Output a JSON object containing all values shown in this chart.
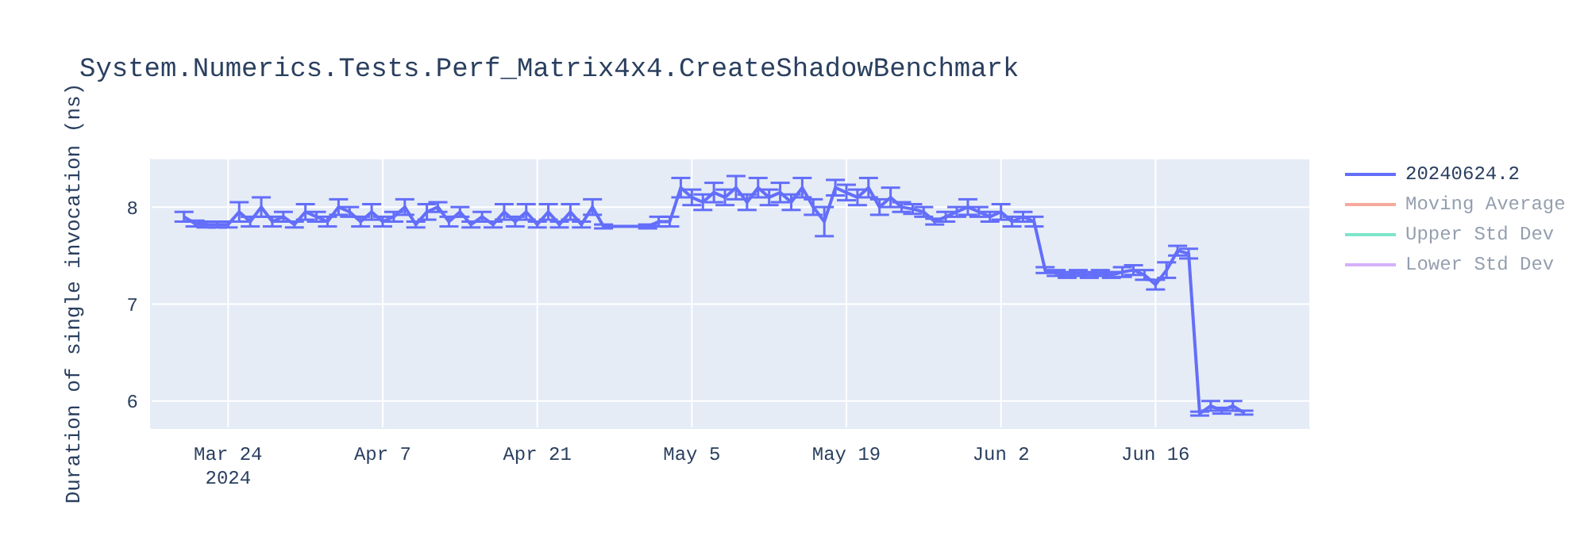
{
  "chart_data": {
    "type": "line",
    "title": "System.Numerics.Tests.Perf_Matrix4x4.CreateShadowBenchmark",
    "ylabel": "Duration of single invocation (ns)",
    "x": [
      "2024-03-20",
      "2024-03-21",
      "2024-03-22",
      "2024-03-23",
      "2024-03-24",
      "2024-03-25",
      "2024-03-26",
      "2024-03-27",
      "2024-03-28",
      "2024-03-29",
      "2024-03-30",
      "2024-03-31",
      "2024-04-01",
      "2024-04-02",
      "2024-04-03",
      "2024-04-04",
      "2024-04-05",
      "2024-04-06",
      "2024-04-07",
      "2024-04-08",
      "2024-04-09",
      "2024-04-10",
      "2024-04-11",
      "2024-04-12",
      "2024-04-13",
      "2024-04-14",
      "2024-04-15",
      "2024-04-16",
      "2024-04-17",
      "2024-04-18",
      "2024-04-19",
      "2024-04-20",
      "2024-04-21",
      "2024-04-22",
      "2024-04-23",
      "2024-04-24",
      "2024-04-25",
      "2024-04-26",
      "2024-04-27",
      "2024-05-01",
      "2024-05-02",
      "2024-05-03",
      "2024-05-04",
      "2024-05-05",
      "2024-05-06",
      "2024-05-07",
      "2024-05-08",
      "2024-05-09",
      "2024-05-10",
      "2024-05-11",
      "2024-05-12",
      "2024-05-13",
      "2024-05-14",
      "2024-05-15",
      "2024-05-16",
      "2024-05-17",
      "2024-05-18",
      "2024-05-19",
      "2024-05-20",
      "2024-05-21",
      "2024-05-22",
      "2024-05-23",
      "2024-05-24",
      "2024-05-25",
      "2024-05-26",
      "2024-05-27",
      "2024-05-28",
      "2024-05-29",
      "2024-05-30",
      "2024-05-31",
      "2024-06-01",
      "2024-06-02",
      "2024-06-03",
      "2024-06-04",
      "2024-06-05",
      "2024-06-06",
      "2024-06-07",
      "2024-06-08",
      "2024-06-09",
      "2024-06-10",
      "2024-06-11",
      "2024-06-12",
      "2024-06-13",
      "2024-06-14",
      "2024-06-15",
      "2024-06-16",
      "2024-06-17",
      "2024-06-18",
      "2024-06-19",
      "2024-06-20",
      "2024-06-21",
      "2024-06-22",
      "2024-06-23",
      "2024-06-24"
    ],
    "series": [
      {
        "name": "20240624.2",
        "color": "#636efa",
        "values": [
          7.9,
          7.83,
          7.82,
          7.82,
          7.82,
          7.95,
          7.85,
          8.0,
          7.85,
          7.9,
          7.82,
          7.95,
          7.9,
          7.85,
          8.0,
          7.95,
          7.85,
          7.95,
          7.85,
          7.9,
          8.0,
          7.82,
          7.95,
          8.0,
          7.85,
          7.95,
          7.82,
          7.9,
          7.82,
          7.95,
          7.85,
          7.95,
          7.82,
          7.95,
          7.82,
          7.95,
          7.82,
          8.0,
          7.8,
          7.8,
          7.85,
          7.85,
          8.2,
          8.1,
          8.05,
          8.15,
          8.1,
          8.2,
          8.05,
          8.2,
          8.1,
          8.15,
          8.05,
          8.2,
          8.0,
          7.85,
          8.2,
          8.15,
          8.1,
          8.2,
          8.0,
          8.1,
          8.0,
          7.98,
          7.95,
          7.85,
          7.9,
          7.95,
          8.0,
          7.95,
          7.9,
          7.95,
          7.85,
          7.9,
          7.85,
          7.35,
          7.32,
          7.3,
          7.32,
          7.3,
          7.32,
          7.3,
          7.33,
          7.35,
          7.3,
          7.2,
          7.35,
          7.55,
          7.52,
          5.87,
          5.95,
          5.9,
          5.95,
          5.88
        ],
        "errors": [
          0.05,
          0.03,
          0.03,
          0.03,
          0.03,
          0.1,
          0.05,
          0.1,
          0.05,
          0.05,
          0.03,
          0.08,
          0.05,
          0.05,
          0.08,
          0.05,
          0.05,
          0.08,
          0.05,
          0.05,
          0.08,
          0.03,
          0.08,
          0.05,
          0.05,
          0.05,
          0.03,
          0.05,
          0.03,
          0.08,
          0.05,
          0.08,
          0.03,
          0.08,
          0.03,
          0.08,
          0.03,
          0.08,
          0.02,
          0.02,
          0.05,
          0.05,
          0.1,
          0.08,
          0.08,
          0.1,
          0.08,
          0.12,
          0.08,
          0.1,
          0.08,
          0.1,
          0.08,
          0.1,
          0.08,
          0.15,
          0.08,
          0.08,
          0.08,
          0.1,
          0.08,
          0.1,
          0.05,
          0.05,
          0.05,
          0.03,
          0.05,
          0.05,
          0.08,
          0.05,
          0.05,
          0.08,
          0.05,
          0.05,
          0.05,
          0.03,
          0.03,
          0.03,
          0.03,
          0.03,
          0.03,
          0.03,
          0.05,
          0.05,
          0.05,
          0.05,
          0.08,
          0.05,
          0.05,
          0.02,
          0.05,
          0.03,
          0.05,
          0.02
        ]
      },
      {
        "name": "Moving Average",
        "color": "#ef553b",
        "values": [
          null,
          null,
          null,
          null,
          null,
          null,
          null,
          null,
          null,
          null,
          null,
          null,
          null,
          null,
          null,
          null,
          null,
          null,
          null,
          null,
          null,
          null,
          null,
          null,
          null,
          null,
          null,
          null,
          null,
          null,
          null,
          null,
          null,
          null,
          null,
          null,
          null,
          null,
          null,
          null,
          null,
          null,
          null,
          null,
          null,
          null,
          null,
          null,
          null,
          null,
          null,
          null,
          null,
          null,
          null,
          null,
          null,
          null,
          null,
          null,
          null,
          null,
          null,
          null,
          null,
          null,
          null,
          null,
          null,
          null,
          null,
          null,
          null,
          null,
          null,
          null,
          null,
          null,
          null,
          null,
          null,
          null,
          null,
          null,
          null,
          null,
          null,
          null,
          null,
          null,
          null,
          null,
          null,
          null
        ]
      },
      {
        "name": "Upper Std Dev",
        "color": "#00cc96",
        "values": [
          null,
          null,
          null,
          null,
          null,
          null,
          null,
          null,
          null,
          null,
          null,
          null,
          null,
          null,
          null,
          null,
          null,
          null,
          null,
          null,
          null,
          null,
          null,
          null,
          null,
          null,
          null,
          null,
          null,
          null,
          null,
          null,
          null,
          null,
          null,
          null,
          null,
          null,
          null,
          null,
          null,
          null,
          null,
          null,
          null,
          null,
          null,
          null,
          null,
          null,
          null,
          null,
          null,
          null,
          null,
          null,
          null,
          null,
          null,
          null,
          null,
          null,
          null,
          null,
          null,
          null,
          null,
          null,
          null,
          null,
          null,
          null,
          null,
          null,
          null,
          null,
          null,
          null,
          null,
          null,
          null,
          null,
          null,
          null,
          null,
          null,
          null,
          null,
          null,
          null,
          null,
          null,
          null,
          null
        ]
      },
      {
        "name": "Lower Std Dev",
        "color": "#ab63fa",
        "values": [
          null,
          null,
          null,
          null,
          null,
          null,
          null,
          null,
          null,
          null,
          null,
          null,
          null,
          null,
          null,
          null,
          null,
          null,
          null,
          null,
          null,
          null,
          null,
          null,
          null,
          null,
          null,
          null,
          null,
          null,
          null,
          null,
          null,
          null,
          null,
          null,
          null,
          null,
          null,
          null,
          null,
          null,
          null,
          null,
          null,
          null,
          null,
          null,
          null,
          null,
          null,
          null,
          null,
          null,
          null,
          null,
          null,
          null,
          null,
          null,
          null,
          null,
          null,
          null,
          null,
          null,
          null,
          null,
          null,
          null,
          null,
          null,
          null,
          null,
          null,
          null,
          null,
          null,
          null,
          null,
          null,
          null,
          null,
          null,
          null,
          null,
          null,
          null,
          null,
          null,
          null,
          null,
          null,
          null
        ]
      }
    ],
    "xlim": [
      "2024-03-17",
      "2024-06-30"
    ],
    "xticks": [
      {
        "value": "2024-03-24",
        "label": "Mar 24\n2024"
      },
      {
        "value": "2024-04-07",
        "label": "Apr 7"
      },
      {
        "value": "2024-04-21",
        "label": "Apr 21"
      },
      {
        "value": "2024-05-05",
        "label": "May 5"
      },
      {
        "value": "2024-05-19",
        "label": "May 19"
      },
      {
        "value": "2024-06-02",
        "label": "Jun 2"
      },
      {
        "value": "2024-06-16",
        "label": "Jun 16"
      }
    ],
    "ylim": [
      5.72,
      8.5
    ],
    "yticks": [
      6,
      7,
      8
    ],
    "grid": true,
    "legend": "top right",
    "marker": "none",
    "line_style": "solid"
  }
}
